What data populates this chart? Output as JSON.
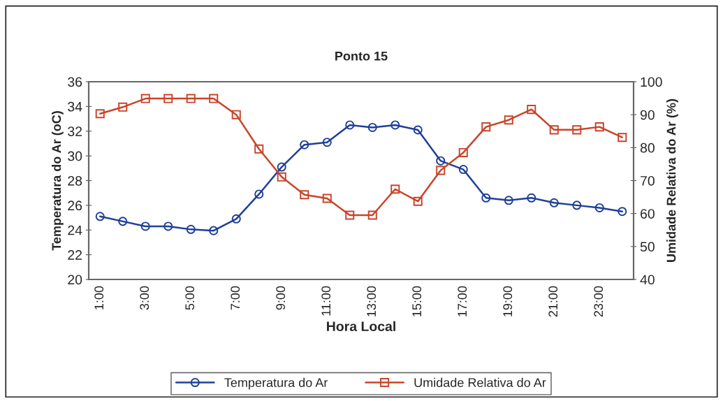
{
  "chart_data": {
    "type": "line",
    "title": "Ponto 15",
    "xlabel": "Hora Local",
    "ylabel": "Temperatura do Ar (oC)",
    "y2label": "Umidade Relativa do Ar (%)",
    "categories": [
      "1:00",
      null,
      "3:00",
      null,
      "5:00",
      null,
      "7:00",
      null,
      "9:00",
      null,
      "11:00",
      null,
      "13:00",
      null,
      "15:00",
      null,
      "17:00",
      null,
      "19:00",
      null,
      "21:00",
      null,
      "23:00",
      null
    ],
    "series": [
      {
        "name": "Temperatura do Ar",
        "color": "#1f3f99",
        "marker": "circle",
        "values": [
          25.1,
          24.7,
          24.3,
          24.3,
          24.05,
          23.95,
          24.9,
          26.9,
          29.1,
          30.9,
          31.1,
          32.5,
          32.3,
          32.5,
          32.1,
          29.6,
          28.9,
          26.6,
          26.4,
          26.6,
          26.2,
          26.0,
          25.8,
          25.5
        ]
      },
      {
        "name": "Umidade Relativa do Ar",
        "color": "#c8442a",
        "marker": "square",
        "axis": "y2",
        "values": [
          90.3,
          92.3,
          94.9,
          94.9,
          94.9,
          94.9,
          90.0,
          79.6,
          71.1,
          65.7,
          64.6,
          59.5,
          59.5,
          67.4,
          63.7,
          73.1,
          78.5,
          86.3,
          88.4,
          91.6,
          85.4,
          85.4,
          86.3,
          83.1
        ]
      }
    ],
    "ylim": [
      20,
      36
    ],
    "yticks": [
      20,
      22,
      24,
      26,
      28,
      30,
      32,
      34,
      36
    ],
    "y2lim": [
      40,
      100
    ],
    "y2ticks": [
      40,
      50,
      60,
      70,
      80,
      90,
      100
    ],
    "grid": false,
    "legend": "bottom",
    "line_style": "solid"
  }
}
